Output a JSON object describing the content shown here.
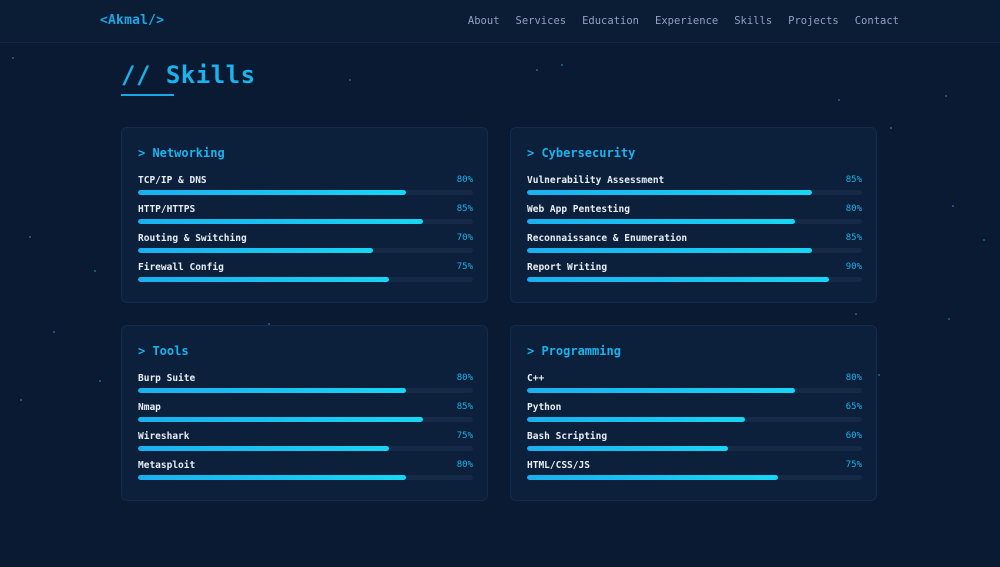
{
  "header": {
    "logo": "<Akmal/>",
    "nav": [
      "About",
      "Services",
      "Education",
      "Experience",
      "Skills",
      "Projects",
      "Contact"
    ]
  },
  "section": {
    "title": "// Skills"
  },
  "colors": {
    "accent": "#19b4ee",
    "background": "#0a1a32",
    "card": "#0c1f3b",
    "track": "#152a47"
  },
  "cards": [
    {
      "title": "> Networking",
      "skills": [
        {
          "name": "TCP/IP & DNS",
          "level": "80%",
          "fraction": 0.8
        },
        {
          "name": "HTTP/HTTPS",
          "level": "85%",
          "fraction": 0.85
        },
        {
          "name": "Routing & Switching",
          "level": "70%",
          "fraction": 0.7
        },
        {
          "name": "Firewall Config",
          "level": "75%",
          "fraction": 0.75
        }
      ]
    },
    {
      "title": "> Cybersecurity",
      "skills": [
        {
          "name": "Vulnerability Assessment",
          "level": "85%",
          "fraction": 0.85
        },
        {
          "name": "Web App Pentesting",
          "level": "80%",
          "fraction": 0.8
        },
        {
          "name": "Reconnaissance & Enumeration",
          "level": "85%",
          "fraction": 0.85
        },
        {
          "name": "Report Writing",
          "level": "90%",
          "fraction": 0.9
        }
      ]
    },
    {
      "title": "> Tools",
      "skills": [
        {
          "name": "Burp Suite",
          "level": "80%",
          "fraction": 0.8
        },
        {
          "name": "Nmap",
          "level": "85%",
          "fraction": 0.85
        },
        {
          "name": "Wireshark",
          "level": "75%",
          "fraction": 0.75
        },
        {
          "name": "Metasploit",
          "level": "80%",
          "fraction": 0.8
        }
      ]
    },
    {
      "title": "> Programming",
      "skills": [
        {
          "name": "C++",
          "level": "80%",
          "fraction": 0.8
        },
        {
          "name": "Python",
          "level": "65%",
          "fraction": 0.65
        },
        {
          "name": "Bash Scripting",
          "level": "60%",
          "fraction": 0.6
        },
        {
          "name": "HTML/CSS/JS",
          "level": "75%",
          "fraction": 0.75
        }
      ]
    }
  ]
}
